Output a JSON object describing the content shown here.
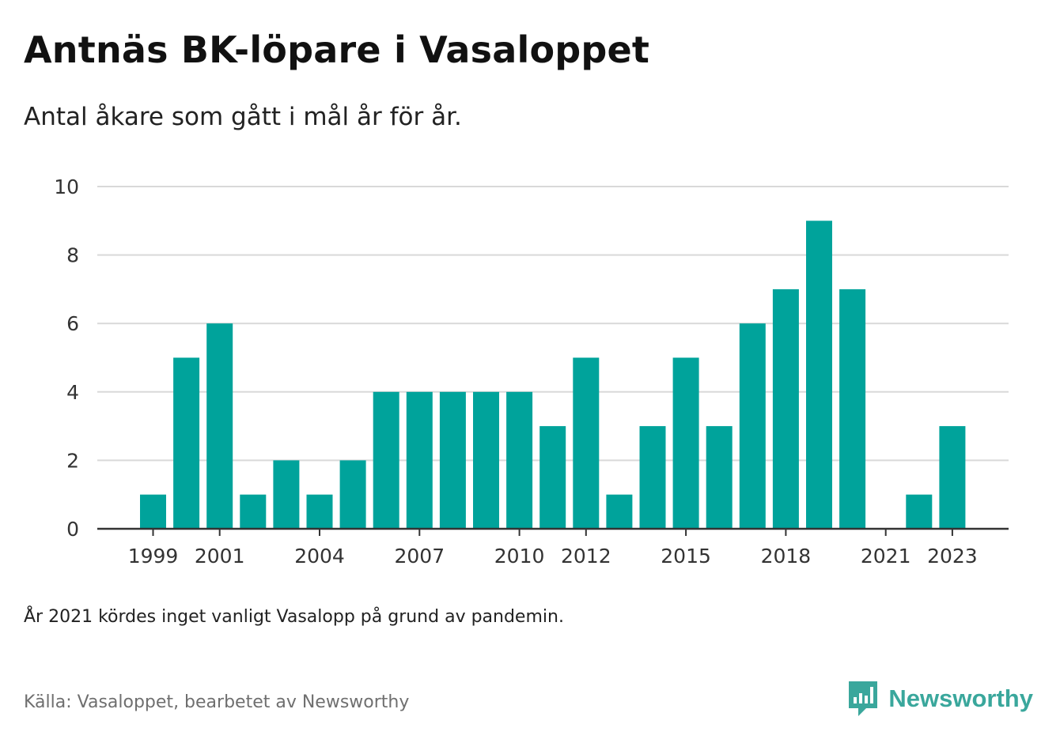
{
  "header": {
    "title": "Antnäs BK-löpare i Vasaloppet",
    "subtitle": "Antal åkare som gått i mål år för år."
  },
  "footer": {
    "note": "År 2021 kördes inget vanligt Vasalopp på grund av pandemin.",
    "source": "Källa: Vasaloppet, bearbetet av Newsworthy",
    "logo_text": "Newsworthy"
  },
  "colors": {
    "bar": "#00a39b",
    "grid": "#d9d9d9",
    "axis": "#333333",
    "logo": "#3aa79c"
  },
  "chart_data": {
    "type": "bar",
    "categories": [
      "1999",
      "2000",
      "2001",
      "2002",
      "2003",
      "2004",
      "2005",
      "2006",
      "2007",
      "2008",
      "2009",
      "2010",
      "2011",
      "2012",
      "2013",
      "2014",
      "2015",
      "2016",
      "2017",
      "2018",
      "2019",
      "2020",
      "2021",
      "2022",
      "2023"
    ],
    "values": [
      1,
      5,
      6,
      1,
      2,
      1,
      2,
      4,
      4,
      4,
      4,
      4,
      3,
      5,
      1,
      3,
      5,
      3,
      6,
      7,
      9,
      7,
      0,
      1,
      3
    ],
    "x_tick_labels": [
      "1999",
      "2001",
      "2004",
      "2007",
      "2010",
      "2012",
      "2015",
      "2018",
      "2021",
      "2023"
    ],
    "y_ticks": [
      0,
      2,
      4,
      6,
      8,
      10
    ],
    "ylim": [
      0,
      10
    ],
    "grid": true,
    "legend": "none"
  }
}
